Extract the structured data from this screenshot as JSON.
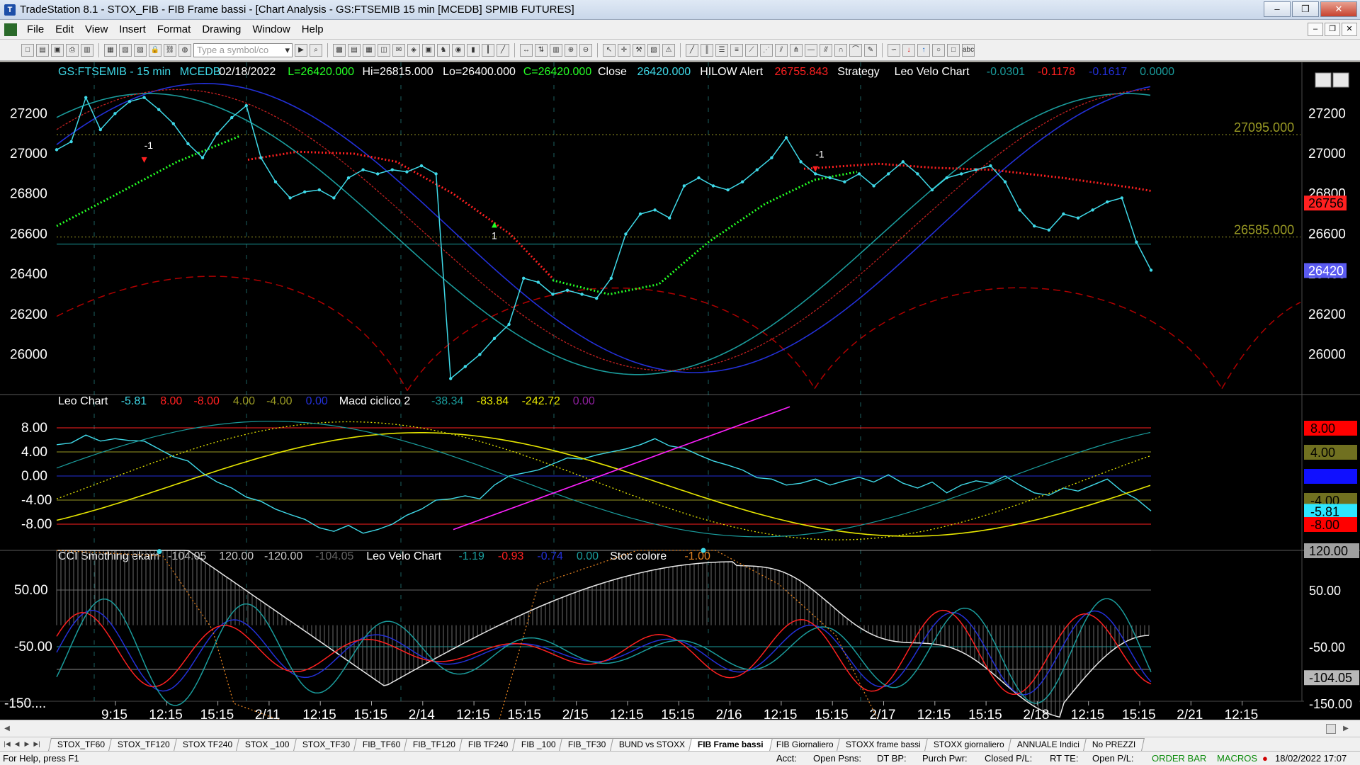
{
  "window": {
    "title": "TradeStation 8.1 - STOX_FIB - FIB Frame bassi - [Chart Analysis - GS:FTSEMIB  15 min  [MCEDB] SPMIB FUTURES]",
    "buttons": [
      "–",
      "❒",
      "✕"
    ]
  },
  "menu": [
    "File",
    "Edit",
    "View",
    "Insert",
    "Format",
    "Drawing",
    "Window",
    "Help"
  ],
  "toolbar": {
    "symbol_placeholder": "Type a symbol/co"
  },
  "chart": {
    "colors": {
      "bg": "#000000",
      "price": "#3fd9e8",
      "axis_text": "#ffffff",
      "red": "#ff2020",
      "green": "#25ff25",
      "yellow": "#e6e600",
      "olive": "#9a9a24",
      "blue": "#2330d8",
      "teal": "#1a9c9c",
      "magenta": "#ff20ff",
      "darkred": "#b00000"
    },
    "header1": [
      {
        "t": "GS:FTSEMIB - 15 min",
        "c": "#3fd9e8"
      },
      {
        "t": "MCEDB",
        "c": "#3fd9e8"
      },
      {
        "t": "02/18/2022",
        "c": "#ffffff"
      },
      {
        "t": "L=26420.000",
        "c": "#25ff25"
      },
      {
        "t": "Hi=26815.000",
        "c": "#ffffff"
      },
      {
        "t": "Lo=26400.000",
        "c": "#ffffff"
      },
      {
        "t": "C=26420.000",
        "c": "#25ff25"
      },
      {
        "t": "Close",
        "c": "#ffffff"
      },
      {
        "t": "26420.000",
        "c": "#3fd9e8"
      },
      {
        "t": "HILOW Alert",
        "c": "#ffffff"
      },
      {
        "t": "26755.843",
        "c": "#ff2020"
      },
      {
        "t": "Strategy",
        "c": "#ffffff"
      },
      {
        "t": "Leo Velo Chart",
        "c": "#ffffff"
      },
      {
        "t": "-0.0301",
        "c": "#1a9c9c"
      },
      {
        "t": "-0.1178",
        "c": "#ff2020"
      },
      {
        "t": "-0.1617",
        "c": "#2330d8"
      },
      {
        "t": "0.0000",
        "c": "#1a9c9c"
      }
    ],
    "header2": [
      {
        "t": "Leo Chart",
        "c": "#ffffff"
      },
      {
        "t": "-5.81",
        "c": "#3fd9e8"
      },
      {
        "t": "8.00",
        "c": "#ff2020"
      },
      {
        "t": "-8.00",
        "c": "#ff2020"
      },
      {
        "t": "4.00",
        "c": "#9a9a24"
      },
      {
        "t": "-4.00",
        "c": "#9a9a24"
      },
      {
        "t": "0.00",
        "c": "#2330d8"
      },
      {
        "t": "Macd ciclico 2",
        "c": "#ffffff"
      },
      {
        "t": "-38.34",
        "c": "#1a9c9c"
      },
      {
        "t": "-83.84",
        "c": "#e6e600"
      },
      {
        "t": "-242.72",
        "c": "#e6e600"
      },
      {
        "t": "0.00",
        "c": "#9020a0"
      }
    ],
    "header3": [
      {
        "t": "CCI Smothing ekam",
        "c": "#ffffff"
      },
      {
        "t": "-104.05",
        "c": "#c8c8c8"
      },
      {
        "t": "120.00",
        "c": "#c8c8c8"
      },
      {
        "t": "-120.00",
        "c": "#c8c8c8"
      },
      {
        "t": "-104.05",
        "c": "#666666"
      },
      {
        "t": "Leo Velo Chart",
        "c": "#ffffff"
      },
      {
        "t": "-1.19",
        "c": "#1a9c9c"
      },
      {
        "t": "-0.93",
        "c": "#ff2020"
      },
      {
        "t": "-0.74",
        "c": "#2330d8"
      },
      {
        "t": "0.00",
        "c": "#1a9c9c"
      },
      {
        "t": "Stoc colore",
        "c": "#ffffff"
      },
      {
        "t": "-1.00",
        "c": "#e08020"
      }
    ],
    "price_axis": [
      "27200",
      "27000",
      "26800",
      "26600",
      "26400",
      "26200",
      "26000"
    ],
    "price_levels": [
      {
        "label": "27095.000",
        "value": 27095
      },
      {
        "label": "26585.000",
        "value": 26585
      }
    ],
    "price_badges": [
      {
        "label": "26756",
        "value": 26756,
        "bg": "#ff2020",
        "fg": "#000000"
      },
      {
        "label": "26420",
        "value": 26420,
        "bg": "#5a5af0",
        "fg": "#ffffff"
      }
    ],
    "markers": [
      {
        "label": "-1",
        "x": 6,
        "value": 26990
      },
      {
        "label": "1",
        "x": 30,
        "value": 26660
      },
      {
        "label": "-1",
        "x": 52,
        "value": 26945
      }
    ],
    "osc_axis": [
      "8.00",
      "4.00",
      "0.00",
      "-4.00",
      "-8.00"
    ],
    "osc_badges": [
      {
        "label": "8.00",
        "value": 8,
        "bg": "#ff0000",
        "fg": "#000000"
      },
      {
        "label": "4.00",
        "value": 4,
        "bg": "#707020",
        "fg": "#000000"
      },
      {
        "label": "0.00",
        "value": 0,
        "bg": "#1010ff",
        "fg": "#1010ff"
      },
      {
        "label": "-4.00",
        "value": -4,
        "bg": "#707020",
        "fg": "#000000"
      },
      {
        "label": "-5.81",
        "value": -5.81,
        "bg": "#2ee6ff",
        "fg": "#000000"
      },
      {
        "label": "-8.00",
        "value": -8,
        "bg": "#ff0000",
        "fg": "#000000"
      }
    ],
    "cci_axis": [
      "50.00",
      "-50.00",
      "-150...."
    ],
    "cci_badges": [
      {
        "label": "120.00",
        "value": 120,
        "bg": "#a0a0a0",
        "fg": "#000000"
      },
      {
        "label": "50.00",
        "value": 50,
        "bg": "#000000",
        "fg": "#ffffff"
      },
      {
        "label": "-50.00",
        "value": -50,
        "bg": "#000000",
        "fg": "#ffffff"
      },
      {
        "label": "-104.05",
        "value": -104.05,
        "bg": "#b8b8b8",
        "fg": "#000000"
      },
      {
        "label": "-150.00",
        "value": -150,
        "bg": "#000000",
        "fg": "#ffffff"
      }
    ],
    "time_axis": [
      "9:15",
      "12:15",
      "15:15",
      "2/11",
      "12:15",
      "15:15",
      "2/14",
      "12:15",
      "15:15",
      "2/15",
      "12:15",
      "15:15",
      "2/16",
      "12:15",
      "15:15",
      "2/17",
      "12:15",
      "15:15",
      "2/18",
      "12:15",
      "15:15",
      "2/21",
      "12:15"
    ]
  },
  "chart_data": [
    {
      "type": "line",
      "title": "GS:FTSEMIB - 15 min",
      "x": [
        0,
        1,
        2,
        3,
        4,
        5,
        6,
        7,
        8,
        9,
        10,
        11,
        12,
        13,
        14,
        15,
        16,
        17,
        18,
        19,
        20,
        21,
        22,
        23,
        24,
        25,
        26,
        27,
        28,
        29,
        30,
        31,
        32,
        33,
        34,
        35,
        36,
        37,
        38,
        39,
        40,
        41,
        42,
        43,
        44,
        45,
        46,
        47,
        48,
        49,
        50,
        51,
        52,
        53,
        54,
        55,
        56,
        57,
        58,
        59,
        60,
        61,
        62,
        63,
        64,
        65,
        66,
        67,
        68,
        69,
        70,
        71,
        72,
        73,
        74,
        75
      ],
      "series": [
        {
          "name": "Close",
          "values": [
            27020,
            27060,
            27280,
            27120,
            27200,
            27260,
            27280,
            27220,
            27150,
            27050,
            26980,
            27100,
            27180,
            27240,
            26980,
            26860,
            26780,
            26810,
            26820,
            26780,
            26880,
            26920,
            26900,
            26920,
            26910,
            26940,
            26900,
            25880,
            25940,
            26000,
            26080,
            26150,
            26380,
            26360,
            26300,
            26320,
            26300,
            26280,
            26380,
            26600,
            26700,
            26720,
            26680,
            26840,
            26880,
            26840,
            26820,
            26860,
            26920,
            26980,
            27080,
            26960,
            26900,
            26880,
            26860,
            26900,
            26840,
            26900,
            26960,
            26900,
            26820,
            26880,
            26900,
            26920,
            26940,
            26860,
            26720,
            26640,
            26620,
            26700,
            26680,
            26720,
            26760,
            26780,
            26560,
            26420
          ]
        }
      ],
      "ylim": [
        25850,
        27420
      ]
    },
    {
      "type": "line",
      "title": "Leo Chart",
      "ylim": [
        -10,
        10
      ]
    },
    {
      "type": "line",
      "title": "CCI Smothing ekam",
      "ylim": [
        -200,
        150
      ]
    }
  ],
  "tabs": [
    "STOX_TF60",
    "STOX_TF120",
    "STOX TF240",
    "STOX _100",
    "STOX_TF30",
    "FIB_TF60",
    "FIB_TF120",
    "FIB TF240",
    "FIB _100",
    "FIB_TF30",
    "BUND vs STOXX",
    "FIB Frame bassi",
    "FIB Giornaliero",
    "STOXX frame bassi",
    "STOXX giornaliero",
    "ANNUALE Indici",
    "No PREZZI"
  ],
  "active_tab": "FIB Frame bassi",
  "status": {
    "help": "For Help, press F1",
    "acct": "Acct:",
    "open_psns": "Open Psns:",
    "dt_bp": "DT BP:",
    "purch_pwr": "Purch Pwr:",
    "closed_pl": "Closed P/L:",
    "rt_te": "RT TE:",
    "open_pl": "Open P/L:",
    "order_bar": "ORDER BAR",
    "macros": "MACROS",
    "datetime": "18/02/2022 17:07"
  }
}
